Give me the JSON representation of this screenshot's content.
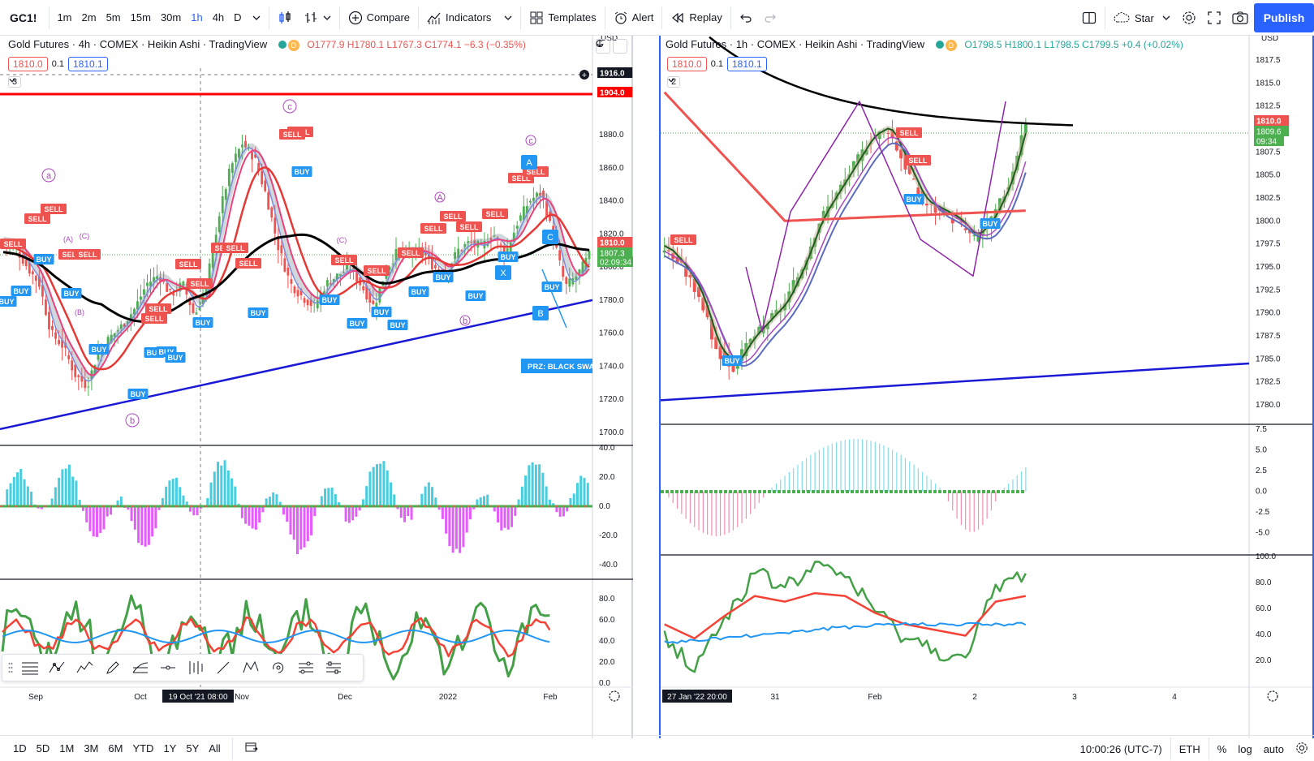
{
  "toolbar": {
    "symbol": "GC1!",
    "intervals": [
      "1m",
      "2m",
      "5m",
      "15m",
      "30m",
      "1h",
      "4h",
      "D"
    ],
    "active_interval": "1h",
    "compare_label": "Compare",
    "indicators_label": "Indicators",
    "templates_label": "Templates",
    "alert_label": "Alert",
    "replay_label": "Replay",
    "layout_name": "Star",
    "publish_label": "Publish"
  },
  "left_chart": {
    "title": "Gold Futures · 4h · COMEX · Heikin Ashi · TradingView",
    "ohlc": "O1777.9 H1780.1 L1767.3 C1774.1 −6.3 (−0.35%)",
    "sell_price": "1810.0",
    "spread": "0.1",
    "buy_price": "1810.1",
    "indicators_collapsed": "3",
    "currency": "USD",
    "price_ticks": [
      "1880.0",
      "1860.0",
      "1840.0",
      "1820.0",
      "1800.0",
      "1780.0",
      "1760.0",
      "1740.0",
      "1720.0",
      "1700.0"
    ],
    "price_labels": {
      "crosshair": "1916.0",
      "red_line": "1904.0",
      "current": "1810.0",
      "last": "1807.3",
      "countdown": "02:09:34"
    },
    "osc_ticks": [
      "40.0",
      "20.0",
      "0.0",
      "-20.0",
      "-40.0"
    ],
    "rsi_ticks": [
      "80.0",
      "60.0",
      "40.0",
      "20.0",
      "0.0"
    ],
    "time_ticks": [
      "Sep",
      "Oct",
      "Nov",
      "Dec",
      "2022",
      "Feb"
    ],
    "crosshair_time": "19 Oct '21  08:00",
    "annotation_prz": "PRZ: BLACK SWAN",
    "wave_labels": [
      "a",
      "b",
      "c",
      "A",
      "B",
      "C",
      "X",
      "(A)",
      "(B)",
      "(C)"
    ],
    "signal_sell": "SELL",
    "signal_buy": "BUY"
  },
  "right_chart": {
    "title": "Gold Futures · 1h · COMEX · Heikin Ashi · TradingView",
    "ohlc": "O1798.5 H1800.1 L1798.5 C1799.5 +0.4 (+0.02%)",
    "sell_price": "1810.0",
    "spread": "0.1",
    "buy_price": "1810.1",
    "indicators_collapsed": "2",
    "currency": "USD",
    "price_ticks": [
      "1817.5",
      "1815.0",
      "1812.5",
      "1807.5",
      "1805.0",
      "1802.5",
      "1800.0",
      "1797.5",
      "1795.0",
      "1792.5",
      "1790.0",
      "1787.5",
      "1785.0",
      "1782.5",
      "1780.0"
    ],
    "price_labels": {
      "current": "1810.0",
      "last": "1809.6",
      "countdown": "09:34"
    },
    "osc_ticks": [
      "7.5",
      "5.0",
      "2.5",
      "0.0",
      "-2.5",
      "-5.0"
    ],
    "rsi_ticks": [
      "100.0",
      "80.0",
      "60.0",
      "40.0",
      "20.0"
    ],
    "time_ticks": [
      "31",
      "Feb",
      "2",
      "3",
      "4"
    ],
    "crosshair_time": "27 Jan '22  20:00",
    "signal_sell": "SELL",
    "signal_buy": "BUY"
  },
  "bottom_bar": {
    "ranges": [
      "1D",
      "5D",
      "1M",
      "3M",
      "6M",
      "YTD",
      "1Y",
      "5Y",
      "All"
    ],
    "clock": "10:00:26 (UTC-7)",
    "session": "ETH",
    "percent_label": "%",
    "log_label": "log",
    "auto_label": "auto"
  },
  "colors": {
    "accent": "#2962ff",
    "sell": "#ef5350",
    "buy": "#2196f3",
    "up_candle": "#4caf50",
    "down_candle": "#ef5350",
    "trendline": "#1a1ad6",
    "wave_label": "#ab47bc"
  }
}
